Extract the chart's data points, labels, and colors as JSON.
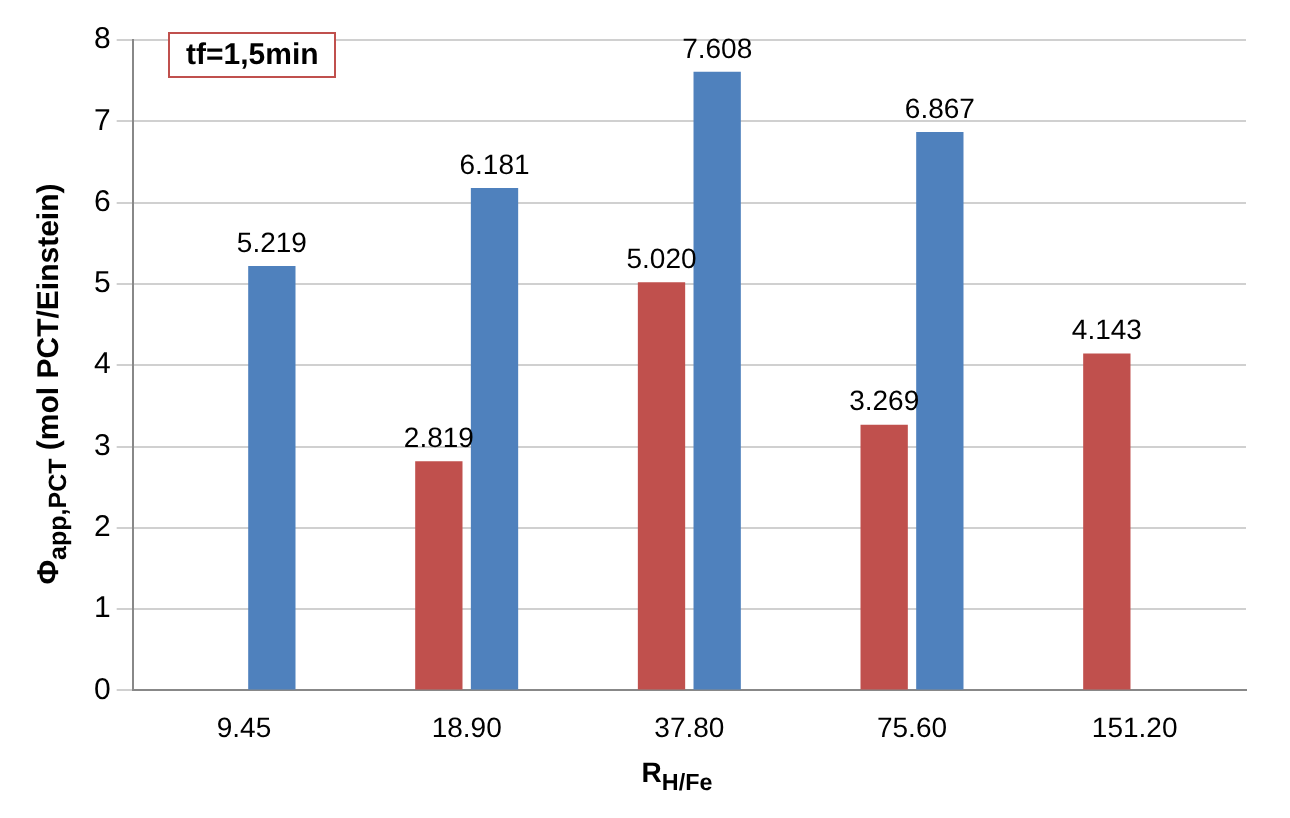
{
  "chart_data": {
    "type": "bar",
    "xlabel": "R$_{H/Fe}$",
    "ylabel": "Φ$_{app,PCT}$ (mol PCT/Einstein)",
    "annotations": [
      "tf=1,5min"
    ],
    "categories": [
      "9.45",
      "18.90",
      "37.80",
      "75.60",
      "151.20"
    ],
    "series": [
      {
        "color": "#c0504d",
        "values": [
          null,
          2.819,
          5.02,
          3.269,
          4.143
        ],
        "value_labels": [
          null,
          "2.819",
          "5.020",
          "3.269",
          "4.143"
        ]
      },
      {
        "color": "#4f81bd",
        "values": [
          5.219,
          6.181,
          7.608,
          6.867,
          null
        ],
        "value_labels": [
          "5.219",
          "6.181",
          "7.608",
          "6.867",
          null
        ]
      }
    ],
    "ylim": [
      0,
      8
    ],
    "yticks": [
      0,
      1,
      2,
      3,
      4,
      5,
      6,
      7,
      8
    ],
    "grid": "y",
    "legend": false
  }
}
